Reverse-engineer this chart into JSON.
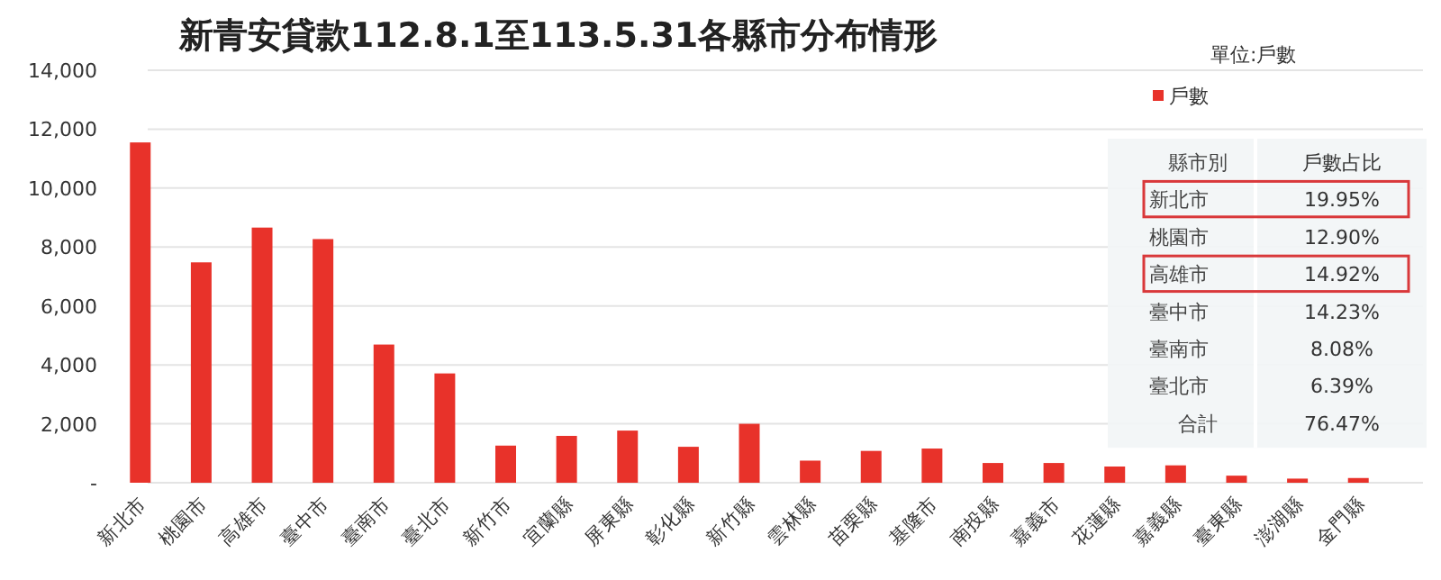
{
  "chart_data": {
    "type": "bar",
    "title": "新青安貸款112.8.1至113.5.31各縣市分布情形",
    "categories": [
      "新北市",
      "桃園市",
      "高雄市",
      "臺中市",
      "臺南市",
      "臺北市",
      "新竹市",
      "宜蘭縣",
      "屏東縣",
      "彰化縣",
      "新竹縣",
      "雲林縣",
      "苗栗縣",
      "基隆市",
      "南投縣",
      "嘉義市",
      "花蓮縣",
      "嘉義縣",
      "臺東縣",
      "澎湖縣",
      "金門縣"
    ],
    "series": [
      {
        "name": "戶數",
        "color": "#e8322a",
        "values": [
          11550,
          7480,
          8660,
          8270,
          4690,
          3710,
          1260,
          1590,
          1770,
          1220,
          2000,
          750,
          1080,
          1160,
          670,
          670,
          550,
          590,
          240,
          140,
          160
        ]
      }
    ],
    "ylim": [
      0,
      14000
    ],
    "yticks": [
      {
        "value": 0,
        "label": "-"
      },
      {
        "value": 2000,
        "label": "2,000"
      },
      {
        "value": 4000,
        "label": "4,000"
      },
      {
        "value": 6000,
        "label": "6,000"
      },
      {
        "value": 8000,
        "label": "8,000"
      },
      {
        "value": 10000,
        "label": "10,000"
      },
      {
        "value": 12000,
        "label": "12,000"
      },
      {
        "value": 14000,
        "label": "14,000"
      }
    ],
    "grid": "y",
    "legend": "top right",
    "annotations": [
      "單位:戶數",
      "縣市別",
      "戶數占比",
      "新北市",
      "19.95%",
      "桃園市",
      "12.90%",
      "高雄市",
      "14.92%",
      "臺中市",
      "14.23%",
      "臺南市",
      "8.08%",
      "臺北市",
      "6.39%",
      "合計",
      "76.47%"
    ]
  }
}
